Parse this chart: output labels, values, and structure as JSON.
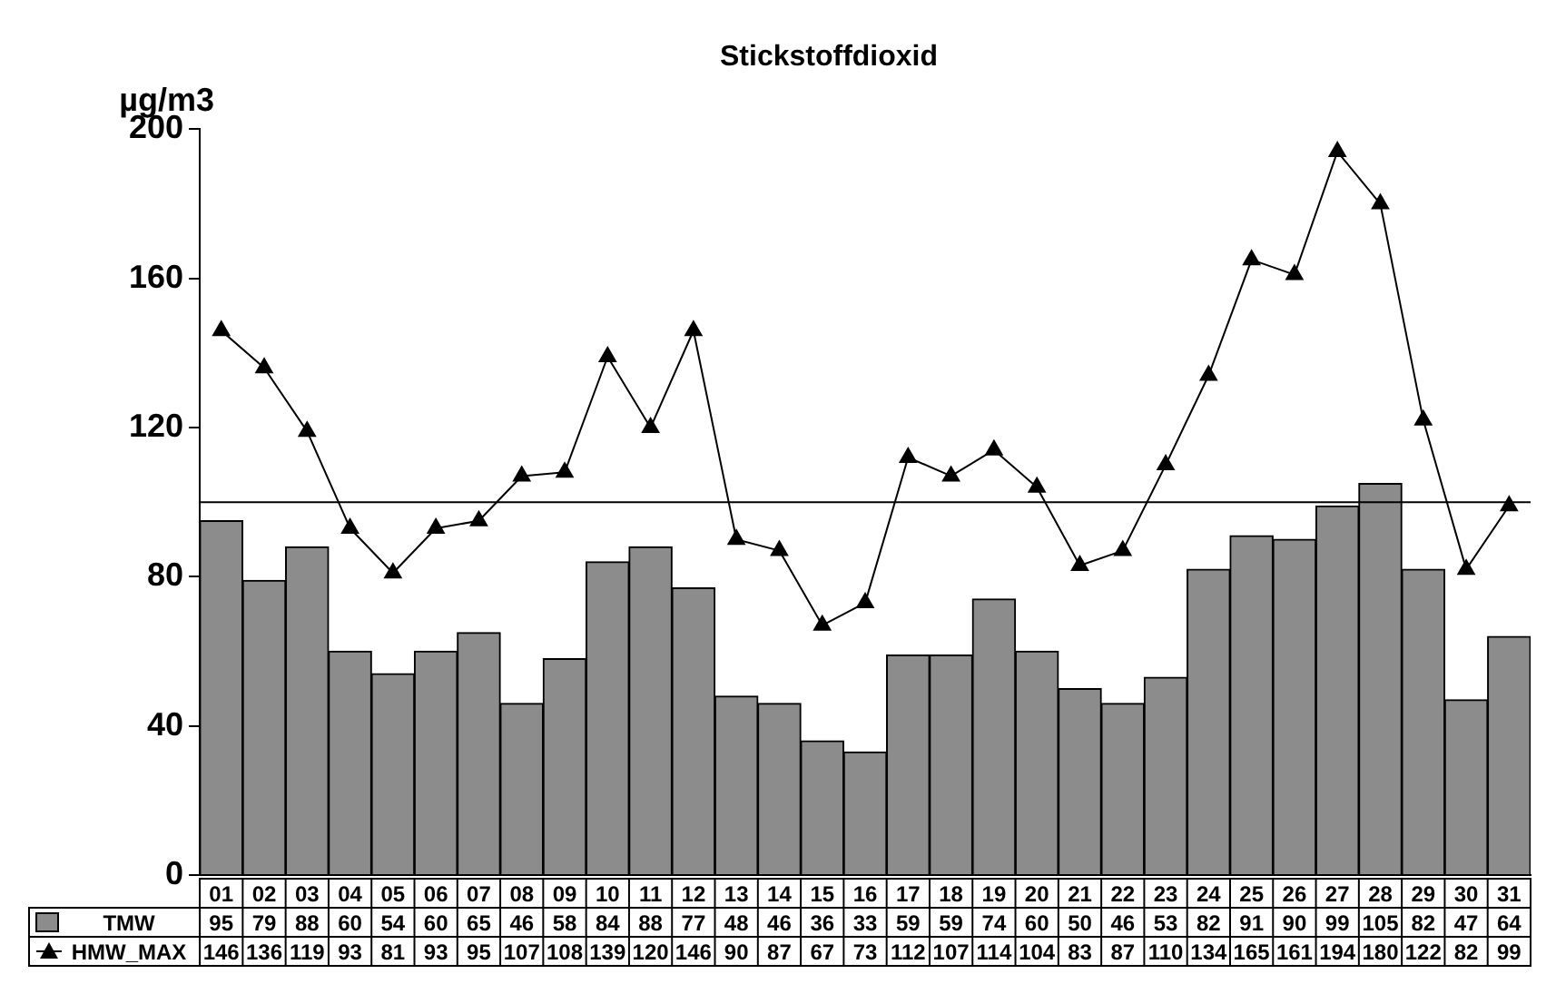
{
  "chart_data": {
    "type": "bar",
    "title": "Stickstoffdioxid",
    "ylabel": "µg/m3",
    "categories": [
      "01",
      "02",
      "03",
      "04",
      "05",
      "06",
      "07",
      "08",
      "09",
      "10",
      "11",
      "12",
      "13",
      "14",
      "15",
      "16",
      "17",
      "18",
      "19",
      "20",
      "21",
      "22",
      "23",
      "24",
      "25",
      "26",
      "27",
      "28",
      "29",
      "30",
      "31"
    ],
    "series": [
      {
        "name": "TMW",
        "color": "#8c8c8c",
        "values": [
          95,
          79,
          88,
          60,
          54,
          60,
          65,
          46,
          58,
          84,
          88,
          77,
          48,
          46,
          36,
          33,
          59,
          59,
          74,
          60,
          50,
          46,
          53,
          82,
          91,
          90,
          99,
          105,
          82,
          47,
          64
        ]
      },
      {
        "name": "HMW_MAX",
        "type": "line",
        "color": "#000000",
        "values": [
          146,
          136,
          119,
          93,
          81,
          93,
          95,
          107,
          108,
          139,
          120,
          146,
          90,
          87,
          67,
          73,
          112,
          107,
          114,
          104,
          83,
          87,
          110,
          134,
          165,
          161,
          194,
          180,
          122,
          82,
          99
        ]
      }
    ],
    "ylim": [
      0,
      200
    ],
    "yticks": [
      0,
      40,
      80,
      120,
      160,
      200
    ],
    "ref_lines": [
      {
        "axis": "y",
        "value": 100,
        "color": "#000000"
      }
    ],
    "data_labels": true,
    "grid": false,
    "legend": "bottom left",
    "marker": "triangle",
    "line_style": "solid"
  }
}
